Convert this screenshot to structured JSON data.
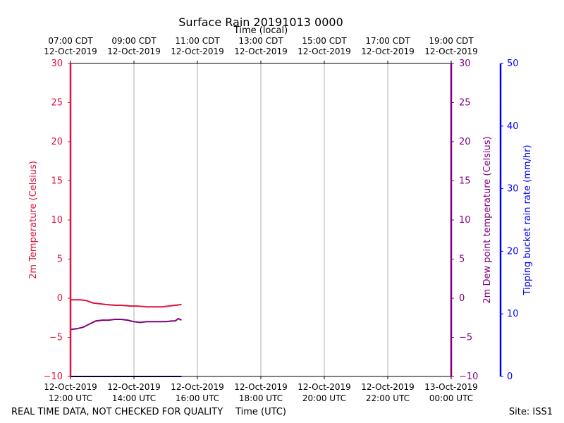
{
  "chart_data": {
    "type": "line",
    "title": "Surface Rain 20191013 0000",
    "top_axis_label": "Time (local)",
    "xlabel": "Time (UTC)",
    "footer_left": "REAL TIME DATA, NOT CHECKED FOR QUALITY",
    "footer_right": "Site: ISS1",
    "x_range_hours": [
      12,
      24
    ],
    "x_ticks_hours": [
      12,
      14,
      16,
      18,
      20,
      22,
      24
    ],
    "x_ticks_utc": [
      [
        "12-Oct-2019",
        "12:00 UTC"
      ],
      [
        "12-Oct-2019",
        "14:00 UTC"
      ],
      [
        "12-Oct-2019",
        "16:00 UTC"
      ],
      [
        "12-Oct-2019",
        "18:00 UTC"
      ],
      [
        "12-Oct-2019",
        "20:00 UTC"
      ],
      [
        "12-Oct-2019",
        "22:00 UTC"
      ],
      [
        "13-Oct-2019",
        "00:00 UTC"
      ]
    ],
    "x_ticks_local": [
      [
        "07:00 CDT",
        "12-Oct-2019"
      ],
      [
        "09:00 CDT",
        "12-Oct-2019"
      ],
      [
        "11:00 CDT",
        "12-Oct-2019"
      ],
      [
        "13:00 CDT",
        "12-Oct-2019"
      ],
      [
        "15:00 CDT",
        "12-Oct-2019"
      ],
      [
        "17:00 CDT",
        "12-Oct-2019"
      ],
      [
        "19:00 CDT",
        "12-Oct-2019"
      ]
    ],
    "y_left": {
      "label": "2m Temperature (Celsius)",
      "range": [
        -10,
        30
      ],
      "ticks": [
        -10,
        -5,
        0,
        5,
        10,
        15,
        20,
        25,
        30
      ],
      "color": "#dc143c"
    },
    "y_right1": {
      "label": "2m Dew point temperature (Celsius)",
      "range": [
        -10,
        30
      ],
      "ticks": [
        -10,
        -5,
        0,
        5,
        10,
        15,
        20,
        25,
        30
      ],
      "color": "#800080"
    },
    "y_right2": {
      "label": "Tipping bucket rain rate (mm/hr)",
      "range": [
        0,
        50
      ],
      "ticks": [
        0,
        10,
        20,
        30,
        40,
        50
      ],
      "color": "#0000ff"
    },
    "grid": "vertical",
    "series": [
      {
        "name": "2m Temperature",
        "axis": "y_left",
        "color": "#dc143c",
        "x": [
          12.0,
          12.3,
          12.5,
          12.7,
          12.9,
          13.1,
          13.4,
          13.6,
          13.9,
          14.1,
          14.4,
          14.7,
          14.9,
          15.1,
          15.3,
          15.5
        ],
        "y": [
          -0.2,
          -0.2,
          -0.3,
          -0.6,
          -0.7,
          -0.8,
          -0.9,
          -0.9,
          -1.0,
          -1.0,
          -1.1,
          -1.1,
          -1.1,
          -1.0,
          -0.9,
          -0.8
        ]
      },
      {
        "name": "2m Dew point temperature",
        "axis": "y_right1",
        "color": "#800080",
        "x": [
          12.0,
          12.2,
          12.4,
          12.6,
          12.8,
          13.0,
          13.2,
          13.4,
          13.6,
          13.8,
          14.0,
          14.2,
          14.4,
          14.6,
          14.8,
          15.0,
          15.2,
          15.3,
          15.4,
          15.5
        ],
        "y": [
          -4.0,
          -3.9,
          -3.7,
          -3.3,
          -2.9,
          -2.8,
          -2.8,
          -2.7,
          -2.7,
          -2.8,
          -3.0,
          -3.1,
          -3.0,
          -3.0,
          -3.0,
          -3.0,
          -2.9,
          -2.9,
          -2.6,
          -2.8
        ]
      },
      {
        "name": "Tipping bucket rain rate",
        "axis": "y_right2",
        "color": "#000080",
        "x": [
          12.0,
          15.5
        ],
        "y": [
          0,
          0
        ]
      }
    ]
  }
}
